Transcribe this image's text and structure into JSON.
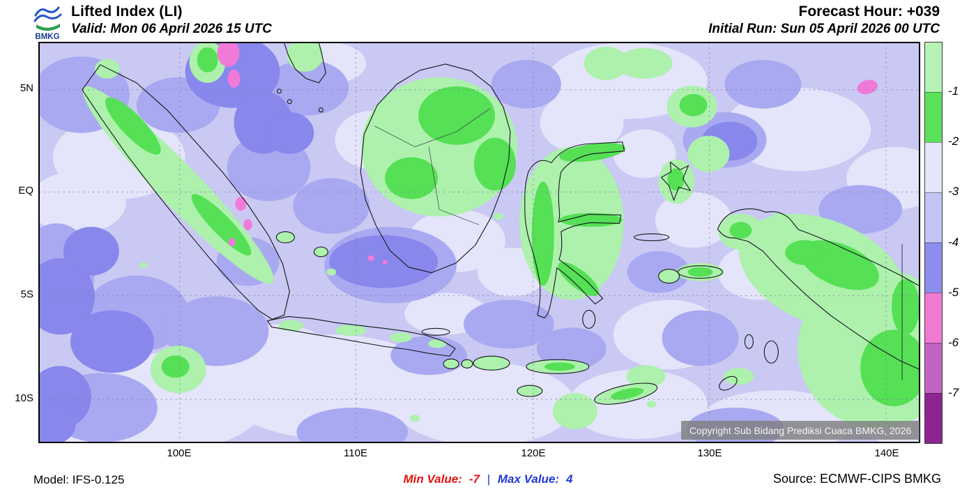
{
  "header": {
    "logo_text": "BMKG",
    "title": "Lifted Index (LI)",
    "valid": "Valid: Mon 06 April 2026 15 UTC",
    "forecast_hour": "Forecast Hour: +039",
    "initial_run": "Initial Run: Sun 05 April 2026 00 UTC"
  },
  "map": {
    "y_ticks": [
      "5N",
      "EQ",
      "5S",
      "10S"
    ],
    "x_ticks": [
      "100E",
      "110E",
      "120E",
      "130E",
      "140E"
    ],
    "copyright": "Copyright Sub Bidang Prediksi Cuaca BMKG, 2026"
  },
  "colorbar": {
    "labels": [
      "-1",
      "-2",
      "-3",
      "-4",
      "-5",
      "-6",
      "-7"
    ],
    "colors": [
      "#b6f2b6",
      "#5be25b",
      "#e6e6fb",
      "#c3c3f4",
      "#8d8dee",
      "#f07ad2",
      "#c263c2",
      "#8e2490"
    ]
  },
  "footer": {
    "model": "Model: IFS-0.125",
    "min_label": "Min Value:",
    "min_value": "-7",
    "separator": "|",
    "max_label": "Max Value:",
    "max_value": "4",
    "source": "Source: ECMWF-CIPS BMKG"
  },
  "chart_data": {
    "type": "heatmap",
    "title": "Lifted Index (LI)",
    "region": "Indonesia",
    "x_ticks": [
      "100E",
      "110E",
      "120E",
      "130E",
      "140E"
    ],
    "y_ticks": [
      "5N",
      "EQ",
      "5S",
      "10S"
    ],
    "colorbar_labels": [
      -1,
      -2,
      -3,
      -4,
      -5,
      -6,
      -7
    ],
    "colorbar_colors": [
      "#b6f2b6",
      "#5be25b",
      "#e6e6fb",
      "#c3c3f4",
      "#8d8dee",
      "#f07ad2",
      "#c263c2",
      "#8e2490"
    ],
    "min_value": -7,
    "max_value": 4,
    "legend_position": "right"
  }
}
